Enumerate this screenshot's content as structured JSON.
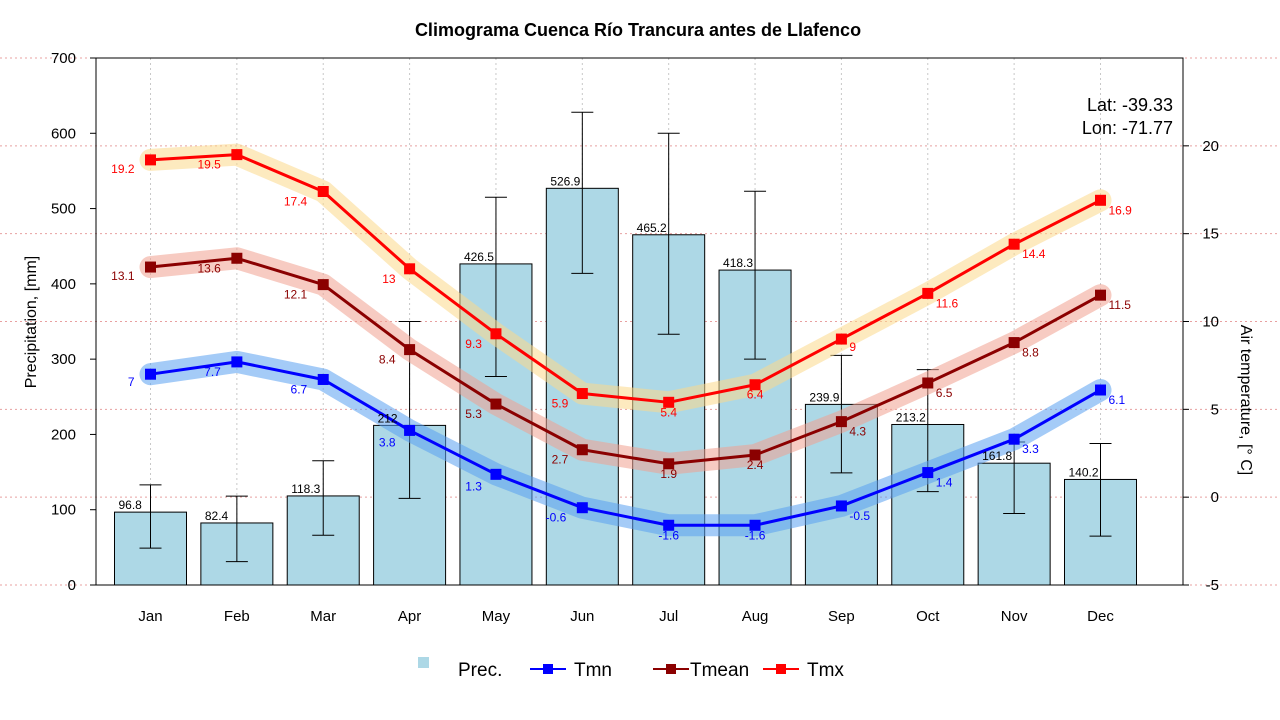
{
  "chart_data": {
    "type": "bar",
    "title": "Climograma Cuenca Río Trancura antes de Llafenco",
    "ylabel": "Precipitation, [mm]",
    "y2label": "Air temperature, [° C]",
    "ylim": [
      0,
      700
    ],
    "y2lim": [
      -5,
      25
    ],
    "y_ticks": [
      "0",
      "100",
      "200",
      "300",
      "400",
      "500",
      "600",
      "700"
    ],
    "y2_ticks": [
      "-5",
      "0",
      "5",
      "10",
      "15",
      "20"
    ],
    "grid": true,
    "legend_position": "bottom",
    "coords": {
      "lat": "Lat: -39.33",
      "lon": "Lon: -71.77"
    },
    "categories": [
      "Jan",
      "Feb",
      "Mar",
      "Apr",
      "May",
      "Jun",
      "Jul",
      "Aug",
      "Sep",
      "Oct",
      "Nov",
      "Dec"
    ],
    "precipitation": {
      "name": "Prec.",
      "color": "#add8e6",
      "values": [
        96.8,
        82.4,
        118.3,
        212,
        426.5,
        526.9,
        465.2,
        418.3,
        239.9,
        213.2,
        161.8,
        140.2
      ],
      "labels": [
        "96.8",
        "82.4",
        "118.3",
        "212",
        "426.5",
        "526.9",
        "465.2",
        "418.3",
        "239.9",
        "213.2",
        "161.8",
        "140.2"
      ],
      "err_low": [
        49,
        31,
        66,
        115,
        277,
        414,
        333,
        300,
        149,
        124,
        95,
        65
      ],
      "err_high": [
        133,
        118,
        165,
        350,
        515,
        628,
        600,
        523,
        305,
        286,
        190,
        188
      ]
    },
    "series": [
      {
        "name": "Tmn",
        "color": "#0000ff",
        "band_color": "#5aa0f0",
        "values": [
          7,
          7.7,
          6.7,
          3.8,
          1.3,
          -0.6,
          -1.6,
          -1.6,
          -0.5,
          1.4,
          3.3,
          6.1
        ],
        "labels": [
          "7",
          "7.7",
          "6.7",
          "3.8",
          "1.3",
          "-0.6",
          "-1.6",
          "-1.6",
          "-0.5",
          "1.4",
          "3.3",
          "6.1"
        ]
      },
      {
        "name": "Tmean",
        "color": "#8b0000",
        "band_color": "#f0a090",
        "values": [
          13.1,
          13.6,
          12.1,
          8.4,
          5.3,
          2.7,
          1.9,
          2.4,
          4.3,
          6.5,
          8.8,
          11.5
        ],
        "labels": [
          "13.1",
          "13.6",
          "12.1",
          "8.4",
          "5.3",
          "2.7",
          "1.9",
          "2.4",
          "4.3",
          "6.5",
          "8.8",
          "11.5"
        ]
      },
      {
        "name": "Tmx",
        "color": "#ff0000",
        "band_color": "#fcd88a",
        "values": [
          19.2,
          19.5,
          17.4,
          13,
          9.3,
          5.9,
          5.4,
          6.4,
          9,
          11.6,
          14.4,
          16.9
        ],
        "labels": [
          "19.2",
          "19.5",
          "17.4",
          "13",
          "9.3",
          "5.9",
          "5.4",
          "6.4",
          "9",
          "11.6",
          "14.4",
          "16.9"
        ]
      }
    ]
  }
}
